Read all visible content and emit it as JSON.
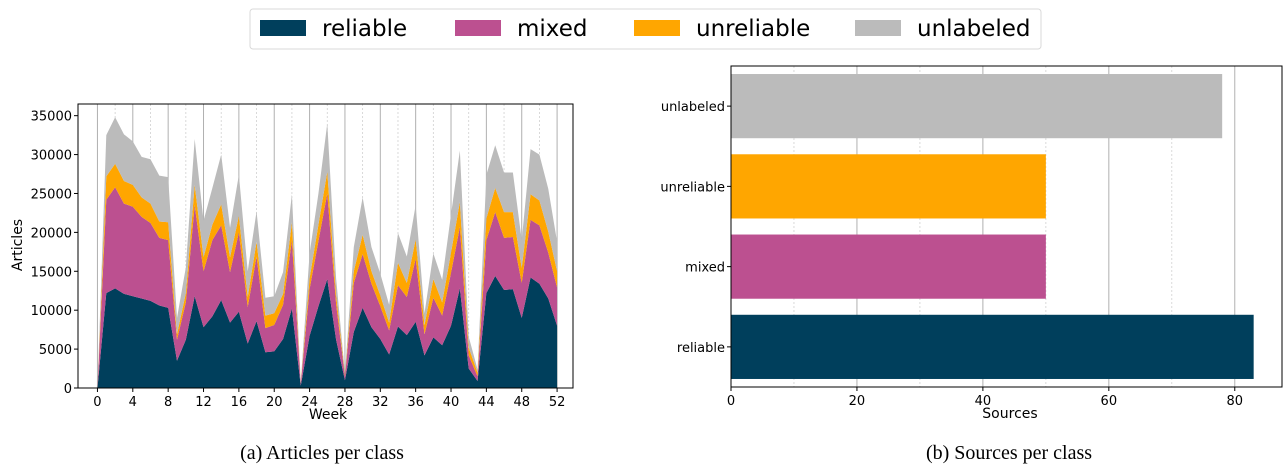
{
  "chart_data": [
    {
      "type": "area",
      "caption": "(a) Articles per class",
      "xlabel": "Week",
      "ylabel": "Articles",
      "xlim": [
        -2.2,
        53.8
      ],
      "ylim": [
        0,
        36500
      ],
      "xticks": [
        0,
        4,
        8,
        12,
        16,
        20,
        24,
        28,
        32,
        36,
        40,
        44,
        48,
        52
      ],
      "yticks": [
        0,
        5000,
        10000,
        15000,
        20000,
        25000,
        30000,
        35000
      ],
      "grid": "vertical",
      "stacked": true,
      "x": [
        0,
        1,
        2,
        3,
        4,
        5,
        6,
        7,
        8,
        9,
        10,
        11,
        12,
        13,
        14,
        15,
        16,
        17,
        18,
        19,
        20,
        21,
        22,
        23,
        24,
        25,
        26,
        27,
        28,
        29,
        30,
        31,
        32,
        33,
        34,
        35,
        36,
        37,
        38,
        39,
        40,
        41,
        42,
        43,
        44,
        45,
        46,
        47,
        48,
        49,
        50,
        51,
        52
      ],
      "series": [
        {
          "name": "reliable",
          "color": "#003f5c",
          "values": [
            0,
            12200,
            12800,
            12100,
            11800,
            11500,
            11200,
            10600,
            10300,
            3500,
            6200,
            11800,
            7800,
            9200,
            11300,
            8400,
            9800,
            5700,
            8600,
            4600,
            4700,
            6300,
            10200,
            300,
            6700,
            10500,
            14000,
            6200,
            1000,
            7200,
            10300,
            7800,
            6300,
            4300,
            7900,
            6800,
            8500,
            4200,
            6500,
            5500,
            8000,
            12800,
            2500,
            900,
            12200,
            14400,
            12600,
            12700,
            9000,
            14200,
            13400,
            11500,
            8000
          ]
        },
        {
          "name": "mixed",
          "color": "#bc5090",
          "values": [
            0,
            12000,
            13000,
            11600,
            11500,
            10500,
            10000,
            8700,
            8700,
            2700,
            4800,
            11700,
            7200,
            9800,
            9600,
            6500,
            10200,
            4700,
            8300,
            3100,
            3400,
            4400,
            8800,
            300,
            6000,
            8400,
            11000,
            4600,
            500,
            6300,
            6900,
            5600,
            4200,
            3100,
            5300,
            4900,
            8100,
            2700,
            5100,
            3800,
            6800,
            7900,
            1700,
            600,
            6800,
            8200,
            6700,
            6700,
            4500,
            7400,
            7500,
            5900,
            4900
          ]
        },
        {
          "name": "unreliable",
          "color": "#ffa600",
          "values": [
            0,
            3000,
            3000,
            2900,
            2800,
            2500,
            2500,
            2100,
            2300,
            700,
            1200,
            2600,
            1800,
            2000,
            2700,
            1900,
            2100,
            1300,
            1900,
            1600,
            1500,
            1400,
            2300,
            100,
            1400,
            2100,
            2800,
            1200,
            200,
            1500,
            2500,
            1600,
            1400,
            1000,
            2900,
            1800,
            2500,
            1200,
            2400,
            1700,
            2600,
            3200,
            1000,
            500,
            2800,
            3100,
            3300,
            3200,
            1900,
            3300,
            3200,
            2700,
            2100
          ]
        },
        {
          "name": "unlabeled",
          "color": "#bbbbbb",
          "values": [
            0,
            5300,
            6000,
            6000,
            5600,
            5200,
            5700,
            5900,
            5800,
            2100,
            3300,
            5900,
            4700,
            4700,
            6400,
            3800,
            5300,
            3300,
            3900,
            2300,
            2200,
            2800,
            3600,
            100,
            3200,
            4000,
            6200,
            2100,
            200,
            3100,
            4800,
            3100,
            2800,
            2300,
            3800,
            3400,
            4400,
            1500,
            3300,
            2900,
            4900,
            6600,
            1400,
            400,
            5600,
            5500,
            5100,
            5100,
            3600,
            5800,
            5900,
            5500,
            3800
          ]
        }
      ]
    },
    {
      "type": "bar",
      "orientation": "horizontal",
      "caption": "(b) Sources per class",
      "xlabel": "Sources",
      "ylabel": "",
      "xlim": [
        0,
        87.5
      ],
      "xticks": [
        0,
        20,
        40,
        60,
        80
      ],
      "grid": "vertical",
      "categories": [
        "reliable",
        "mixed",
        "unreliable",
        "unlabeled"
      ],
      "values": [
        83,
        50,
        50,
        78
      ],
      "colors": [
        "#003f5c",
        "#bc5090",
        "#ffa600",
        "#bbbbbb"
      ]
    }
  ],
  "legend": {
    "placement": "top-center",
    "items": [
      {
        "label": "reliable",
        "color": "#003f5c"
      },
      {
        "label": "mixed",
        "color": "#bc5090"
      },
      {
        "label": "unreliable",
        "color": "#ffa600"
      },
      {
        "label": "unlabeled",
        "color": "#bbbbbb"
      }
    ]
  }
}
